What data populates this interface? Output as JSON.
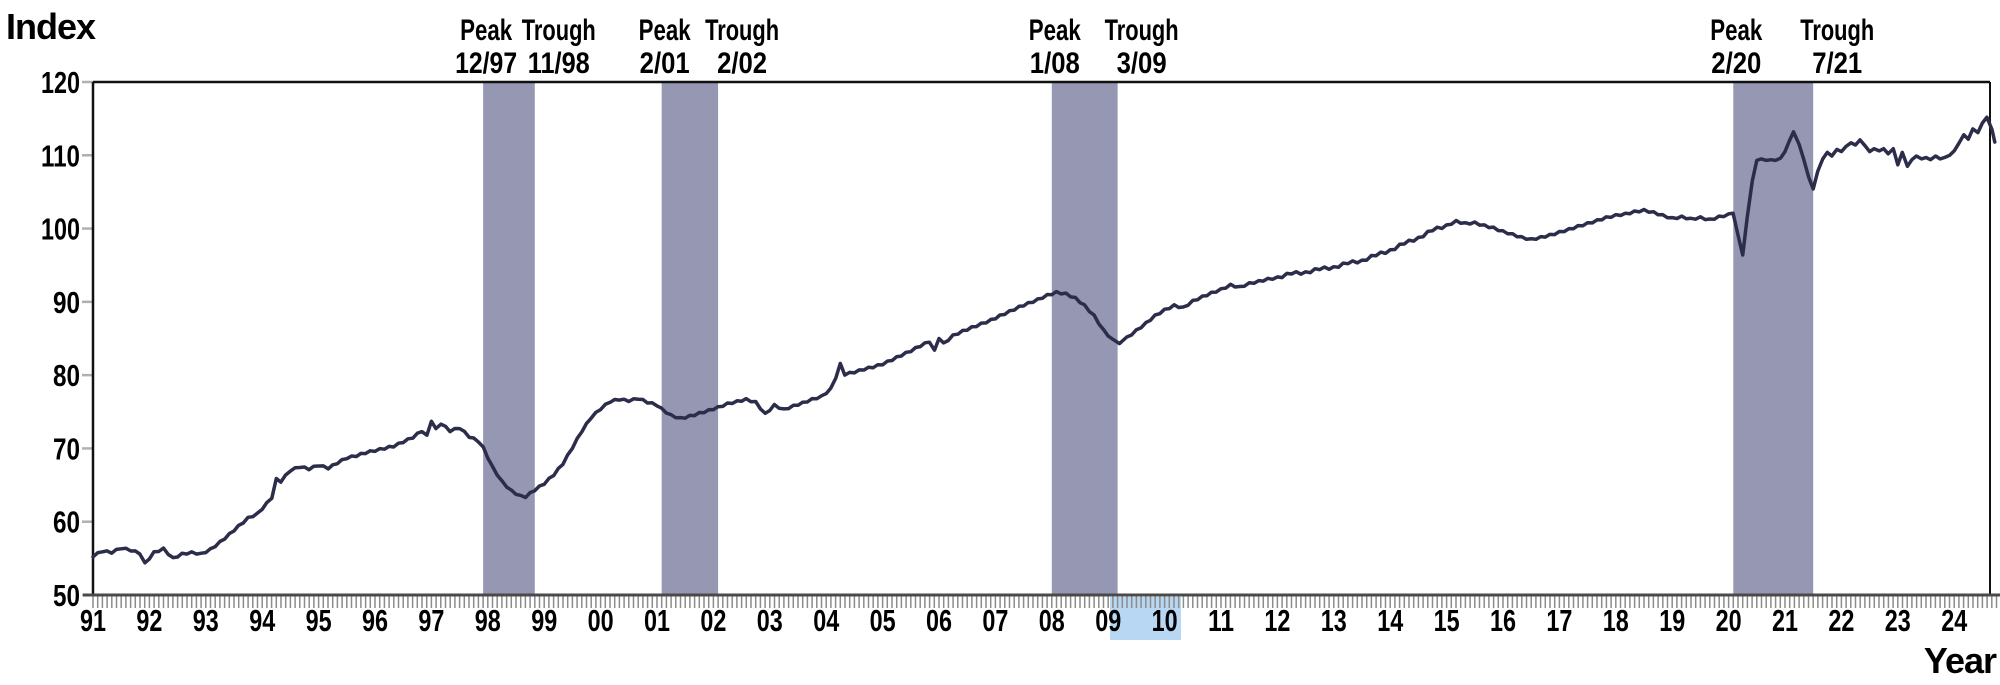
{
  "labels": {
    "y_axis_title": "Index",
    "x_axis_title": "Year"
  },
  "colors": {
    "line": "#2c2d4a",
    "recession_band": "#9697b3",
    "selection_highlight": "#b8d7f3",
    "axis": "#4a4a4a",
    "border": "#111111",
    "month_tick": "#8c8c8c",
    "y_tick": "#b0b0b0"
  },
  "chart_data": {
    "type": "line",
    "title": "",
    "xlabel": "Year",
    "ylabel": "Index",
    "ylim": [
      50,
      120
    ],
    "xlim": [
      1991,
      2024.83
    ],
    "grid": false,
    "legend": "none",
    "y_axis": {
      "ticks": [
        120,
        110,
        100,
        90,
        80,
        70,
        60,
        50
      ]
    },
    "x_axis": {
      "start_year": 1991,
      "tick_labels": [
        "91",
        "92",
        "93",
        "94",
        "95",
        "96",
        "97",
        "98",
        "99",
        "00",
        "01",
        "02",
        "03",
        "04",
        "05",
        "06",
        "07",
        "08",
        "09",
        "10",
        "11",
        "12",
        "13",
        "14",
        "15",
        "16",
        "17",
        "18",
        "19",
        "20",
        "21",
        "22",
        "23",
        "24"
      ],
      "highlighted_label": "10",
      "minor_ticks": "monthly"
    },
    "recession_bands": [
      {
        "peak_label": "Peak",
        "peak_date": "12/97",
        "trough_label": "Trough",
        "trough_date": "11/98",
        "start": 1997.917,
        "end": 1998.833
      },
      {
        "peak_label": "Peak",
        "peak_date": "2/01",
        "trough_label": "Trough",
        "trough_date": "2/02",
        "start": 2001.083,
        "end": 2002.083
      },
      {
        "peak_label": "Peak",
        "peak_date": "1/08",
        "trough_label": "Trough",
        "trough_date": "3/09",
        "start": 2008.0,
        "end": 2009.167
      },
      {
        "peak_label": "Peak",
        "peak_date": "2/20",
        "trough_label": "Trough",
        "trough_date": "7/21",
        "start": 2020.083,
        "end": 2021.5
      }
    ],
    "series": [
      {
        "name": "Index",
        "points": [
          [
            1991.0,
            55.2
          ],
          [
            1991.17,
            55.9
          ],
          [
            1991.33,
            55.7
          ],
          [
            1991.5,
            56.3
          ],
          [
            1991.67,
            56.0
          ],
          [
            1991.83,
            55.6
          ],
          [
            1991.92,
            54.4
          ],
          [
            1992.08,
            55.9
          ],
          [
            1992.25,
            56.4
          ],
          [
            1992.42,
            55.1
          ],
          [
            1992.58,
            55.7
          ],
          [
            1992.75,
            55.9
          ],
          [
            1992.92,
            55.7
          ],
          [
            1993.08,
            56.3
          ],
          [
            1993.25,
            57.3
          ],
          [
            1993.42,
            58.4
          ],
          [
            1993.58,
            59.5
          ],
          [
            1993.75,
            60.6
          ],
          [
            1993.92,
            61.2
          ],
          [
            1994.08,
            62.6
          ],
          [
            1994.17,
            63.2
          ],
          [
            1994.25,
            65.9
          ],
          [
            1994.33,
            65.4
          ],
          [
            1994.5,
            66.9
          ],
          [
            1994.67,
            67.4
          ],
          [
            1994.83,
            67.1
          ],
          [
            1995.0,
            67.6
          ],
          [
            1995.17,
            67.2
          ],
          [
            1995.33,
            67.9
          ],
          [
            1995.5,
            68.6
          ],
          [
            1995.67,
            68.9
          ],
          [
            1995.83,
            69.3
          ],
          [
            1996.0,
            69.6
          ],
          [
            1996.17,
            69.9
          ],
          [
            1996.33,
            70.2
          ],
          [
            1996.5,
            70.8
          ],
          [
            1996.67,
            71.4
          ],
          [
            1996.83,
            72.3
          ],
          [
            1996.92,
            71.8
          ],
          [
            1997.0,
            73.7
          ],
          [
            1997.08,
            72.7
          ],
          [
            1997.17,
            73.3
          ],
          [
            1997.33,
            72.3
          ],
          [
            1997.5,
            72.7
          ],
          [
            1997.67,
            71.5
          ],
          [
            1997.83,
            70.9
          ],
          [
            1997.92,
            70.2
          ],
          [
            1998.08,
            67.6
          ],
          [
            1998.25,
            65.6
          ],
          [
            1998.42,
            64.3
          ],
          [
            1998.58,
            63.6
          ],
          [
            1998.67,
            63.3
          ],
          [
            1998.83,
            64.2
          ],
          [
            1999.0,
            65.1
          ],
          [
            1999.17,
            66.3
          ],
          [
            1999.33,
            67.8
          ],
          [
            1999.5,
            70.0
          ],
          [
            1999.67,
            72.3
          ],
          [
            1999.83,
            74.1
          ],
          [
            2000.0,
            75.3
          ],
          [
            2000.17,
            76.3
          ],
          [
            2000.33,
            76.6
          ],
          [
            2000.5,
            76.4
          ],
          [
            2000.67,
            76.7
          ],
          [
            2000.83,
            76.2
          ],
          [
            2001.0,
            75.8
          ],
          [
            2001.08,
            75.5
          ],
          [
            2001.25,
            74.6
          ],
          [
            2001.42,
            74.2
          ],
          [
            2001.58,
            74.5
          ],
          [
            2001.75,
            74.9
          ],
          [
            2001.92,
            75.3
          ],
          [
            2002.08,
            75.7
          ],
          [
            2002.25,
            76.2
          ],
          [
            2002.42,
            76.5
          ],
          [
            2002.58,
            76.8
          ],
          [
            2002.75,
            76.4
          ],
          [
            2002.92,
            74.8
          ],
          [
            2003.08,
            76.0
          ],
          [
            2003.25,
            75.4
          ],
          [
            2003.42,
            75.9
          ],
          [
            2003.58,
            76.3
          ],
          [
            2003.75,
            76.8
          ],
          [
            2003.92,
            77.2
          ],
          [
            2004.08,
            78.2
          ],
          [
            2004.17,
            79.6
          ],
          [
            2004.25,
            81.6
          ],
          [
            2004.33,
            80.0
          ],
          [
            2004.5,
            80.3
          ],
          [
            2004.67,
            80.7
          ],
          [
            2004.83,
            81.0
          ],
          [
            2005.0,
            81.4
          ],
          [
            2005.17,
            82.0
          ],
          [
            2005.33,
            82.6
          ],
          [
            2005.5,
            83.2
          ],
          [
            2005.67,
            83.9
          ],
          [
            2005.83,
            84.5
          ],
          [
            2005.92,
            83.4
          ],
          [
            2006.0,
            85.0
          ],
          [
            2006.08,
            84.4
          ],
          [
            2006.25,
            85.5
          ],
          [
            2006.42,
            86.1
          ],
          [
            2006.58,
            86.6
          ],
          [
            2006.75,
            87.1
          ],
          [
            2006.92,
            87.6
          ],
          [
            2007.08,
            88.2
          ],
          [
            2007.25,
            88.8
          ],
          [
            2007.42,
            89.4
          ],
          [
            2007.58,
            89.9
          ],
          [
            2007.75,
            90.4
          ],
          [
            2007.92,
            91.0
          ],
          [
            2008.08,
            91.4
          ],
          [
            2008.25,
            91.2
          ],
          [
            2008.42,
            90.6
          ],
          [
            2008.58,
            89.6
          ],
          [
            2008.75,
            88.2
          ],
          [
            2008.92,
            86.2
          ],
          [
            2009.08,
            84.9
          ],
          [
            2009.2,
            84.3
          ],
          [
            2009.33,
            85.2
          ],
          [
            2009.5,
            86.2
          ],
          [
            2009.67,
            87.2
          ],
          [
            2009.83,
            88.2
          ],
          [
            2010.0,
            89.0
          ],
          [
            2010.17,
            89.6
          ],
          [
            2010.33,
            89.3
          ],
          [
            2010.5,
            90.2
          ],
          [
            2010.67,
            90.8
          ],
          [
            2010.83,
            91.3
          ],
          [
            2011.0,
            91.8
          ],
          [
            2011.17,
            92.4
          ],
          [
            2011.33,
            92.1
          ],
          [
            2011.5,
            92.6
          ],
          [
            2011.67,
            92.9
          ],
          [
            2011.83,
            93.2
          ],
          [
            2012.0,
            93.4
          ],
          [
            2012.25,
            93.8
          ],
          [
            2012.5,
            94.1
          ],
          [
            2012.75,
            94.4
          ],
          [
            2013.0,
            94.8
          ],
          [
            2013.25,
            95.2
          ],
          [
            2013.5,
            95.7
          ],
          [
            2013.75,
            96.3
          ],
          [
            2014.0,
            97.1
          ],
          [
            2014.25,
            97.9
          ],
          [
            2014.5,
            98.8
          ],
          [
            2014.75,
            99.7
          ],
          [
            2015.0,
            100.5
          ],
          [
            2015.17,
            101.1
          ],
          [
            2015.33,
            100.8
          ],
          [
            2015.5,
            100.9
          ],
          [
            2015.67,
            100.5
          ],
          [
            2015.83,
            100.2
          ],
          [
            2016.0,
            99.7
          ],
          [
            2016.17,
            99.3
          ],
          [
            2016.33,
            98.9
          ],
          [
            2016.5,
            98.6
          ],
          [
            2016.67,
            98.9
          ],
          [
            2016.83,
            99.2
          ],
          [
            2017.0,
            99.6
          ],
          [
            2017.17,
            100.0
          ],
          [
            2017.33,
            100.4
          ],
          [
            2017.5,
            100.8
          ],
          [
            2017.67,
            101.2
          ],
          [
            2017.83,
            101.6
          ],
          [
            2018.0,
            101.9
          ],
          [
            2018.17,
            102.1
          ],
          [
            2018.33,
            102.4
          ],
          [
            2018.5,
            102.6
          ],
          [
            2018.67,
            102.3
          ],
          [
            2018.83,
            101.9
          ],
          [
            2019.0,
            101.5
          ],
          [
            2019.17,
            101.7
          ],
          [
            2019.33,
            101.4
          ],
          [
            2019.5,
            101.6
          ],
          [
            2019.67,
            101.3
          ],
          [
            2019.83,
            101.7
          ],
          [
            2020.0,
            102.0
          ],
          [
            2020.08,
            102.1
          ],
          [
            2020.17,
            99.0
          ],
          [
            2020.25,
            96.4
          ],
          [
            2020.33,
            101.5
          ],
          [
            2020.42,
            106.5
          ],
          [
            2020.5,
            109.3
          ],
          [
            2020.58,
            109.5
          ],
          [
            2020.67,
            109.3
          ],
          [
            2020.75,
            109.4
          ],
          [
            2020.83,
            109.3
          ],
          [
            2020.92,
            109.6
          ],
          [
            2021.0,
            110.5
          ],
          [
            2021.08,
            112.0
          ],
          [
            2021.15,
            113.2
          ],
          [
            2021.25,
            111.5
          ],
          [
            2021.33,
            109.5
          ],
          [
            2021.42,
            107.0
          ],
          [
            2021.5,
            105.4
          ],
          [
            2021.58,
            107.8
          ],
          [
            2021.67,
            109.5
          ],
          [
            2021.75,
            110.4
          ],
          [
            2021.83,
            109.9
          ],
          [
            2021.92,
            110.8
          ],
          [
            2022.0,
            110.5
          ],
          [
            2022.08,
            111.2
          ],
          [
            2022.17,
            111.7
          ],
          [
            2022.25,
            111.4
          ],
          [
            2022.33,
            112.1
          ],
          [
            2022.42,
            111.3
          ],
          [
            2022.5,
            110.5
          ],
          [
            2022.58,
            110.9
          ],
          [
            2022.67,
            110.6
          ],
          [
            2022.75,
            110.9
          ],
          [
            2022.83,
            110.2
          ],
          [
            2022.92,
            110.9
          ],
          [
            2023.0,
            108.7
          ],
          [
            2023.08,
            110.4
          ],
          [
            2023.17,
            108.5
          ],
          [
            2023.25,
            109.4
          ],
          [
            2023.33,
            109.9
          ],
          [
            2023.42,
            109.5
          ],
          [
            2023.5,
            109.7
          ],
          [
            2023.58,
            109.4
          ],
          [
            2023.67,
            109.9
          ],
          [
            2023.75,
            109.5
          ],
          [
            2023.83,
            109.7
          ],
          [
            2023.92,
            110.0
          ],
          [
            2024.0,
            110.6
          ],
          [
            2024.08,
            111.6
          ],
          [
            2024.17,
            112.8
          ],
          [
            2024.25,
            112.2
          ],
          [
            2024.33,
            113.6
          ],
          [
            2024.42,
            113.1
          ],
          [
            2024.5,
            114.4
          ],
          [
            2024.58,
            115.2
          ],
          [
            2024.67,
            113.5
          ],
          [
            2024.72,
            111.8
          ]
        ]
      }
    ]
  }
}
